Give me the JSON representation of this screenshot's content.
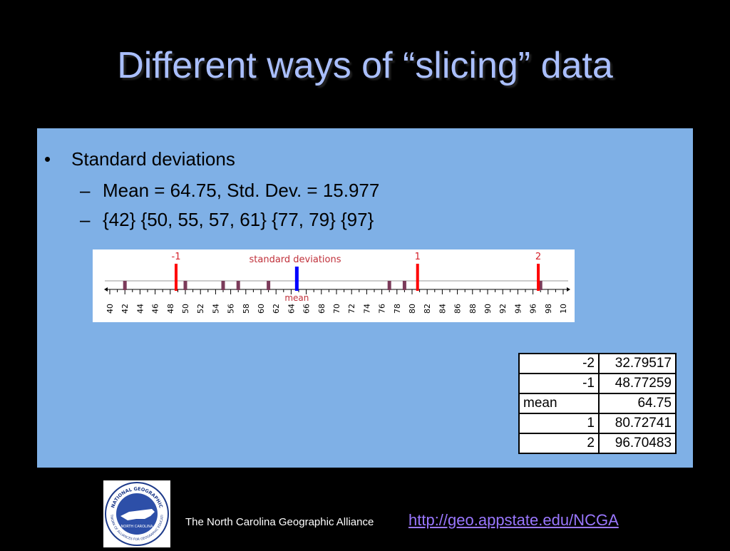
{
  "slide": {
    "title": "Different ways of “slicing” data",
    "bullet": {
      "marker": "•",
      "text": "Standard deviations"
    },
    "subs": [
      {
        "marker": "–",
        "text": "Mean = 64.75, Std. Dev. = 15.977"
      },
      {
        "marker": "–",
        "text": "{42} {50, 55, 57, 61} {77, 79} {97}"
      }
    ]
  },
  "chart_data": {
    "type": "scatter",
    "title": "standard deviations",
    "xlim": [
      40,
      100
    ],
    "ticks": [
      "40",
      "42",
      "44",
      "46",
      "48",
      "50",
      "52",
      "54",
      "56",
      "58",
      "60",
      "62",
      "64",
      "66",
      "68",
      "70",
      "72",
      "74",
      "76",
      "78",
      "80",
      "82",
      "84",
      "86",
      "88",
      "90",
      "92",
      "94",
      "96",
      "98",
      "10"
    ],
    "data_points": [
      42,
      50,
      55,
      57,
      61,
      77,
      79,
      97
    ],
    "sd_lines": [
      {
        "label": "-1",
        "value": 48.77259
      },
      {
        "label": "1",
        "value": 80.72741
      },
      {
        "label": "2",
        "value": 96.70483
      }
    ],
    "mean": {
      "label": "mean",
      "value": 64.75
    },
    "colors": {
      "data": "#7b3b5a",
      "sd": "#ff0000",
      "mean": "#0000ff"
    }
  },
  "table": {
    "rows": [
      {
        "label": "-2",
        "value": "32.79517"
      },
      {
        "label": "-1",
        "value": "48.77259"
      },
      {
        "label": "mean",
        "value": "64.75"
      },
      {
        "label": "1",
        "value": "80.72741"
      },
      {
        "label": "2",
        "value": "96.70483"
      }
    ]
  },
  "footer": {
    "org": "The North Carolina Geographic Alliance",
    "link": "http://geo.appstate.edu/NCGA",
    "logo": {
      "top_text": "NATIONAL GEOGRAPHIC",
      "center_text": "NORTH CAROLINA",
      "ring_text": "NETWORK OF ALLIANCES FOR GEOGRAPHIC EDUCATION"
    }
  }
}
